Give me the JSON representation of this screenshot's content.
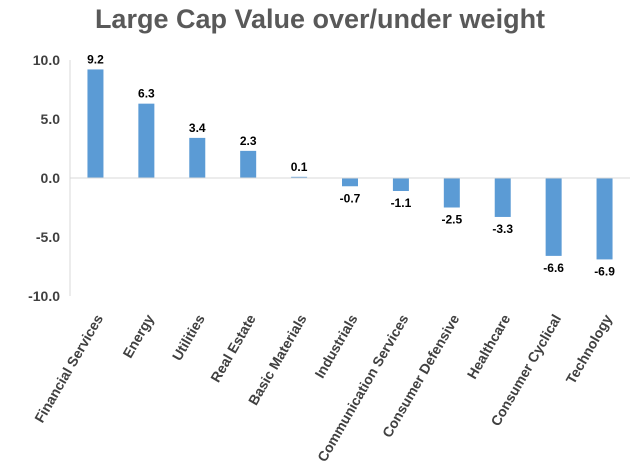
{
  "chart_data": {
    "type": "bar",
    "title": "Large Cap Value over/under weight",
    "categories": [
      "Financial Services",
      "Energy",
      "Utilities",
      "Real Estate",
      "Basic Materials",
      "Industrials",
      "Communication Services",
      "Consumer Defensive",
      "Healthcare",
      "Consumer Cyclical",
      "Technology"
    ],
    "values": [
      9.2,
      6.3,
      3.4,
      2.3,
      0.1,
      -0.7,
      -1.1,
      -2.5,
      -3.3,
      -6.6,
      -6.9
    ],
    "data_labels": [
      "9.2",
      "6.3",
      "3.4",
      "2.3",
      "0.1",
      "-0.7",
      "-1.1",
      "-2.5",
      "-3.3",
      "-6.6",
      "-6.9"
    ],
    "ylim": [
      -10,
      10
    ],
    "yticks": [
      10,
      5,
      0,
      -5,
      -10
    ],
    "ytick_labels": [
      "10.0",
      "5.0",
      "0.0",
      "-5.0",
      "-10.0"
    ],
    "xlabel": "",
    "ylabel": "",
    "grid": false,
    "legend": "none",
    "bar_color": "#5B9BD5"
  }
}
